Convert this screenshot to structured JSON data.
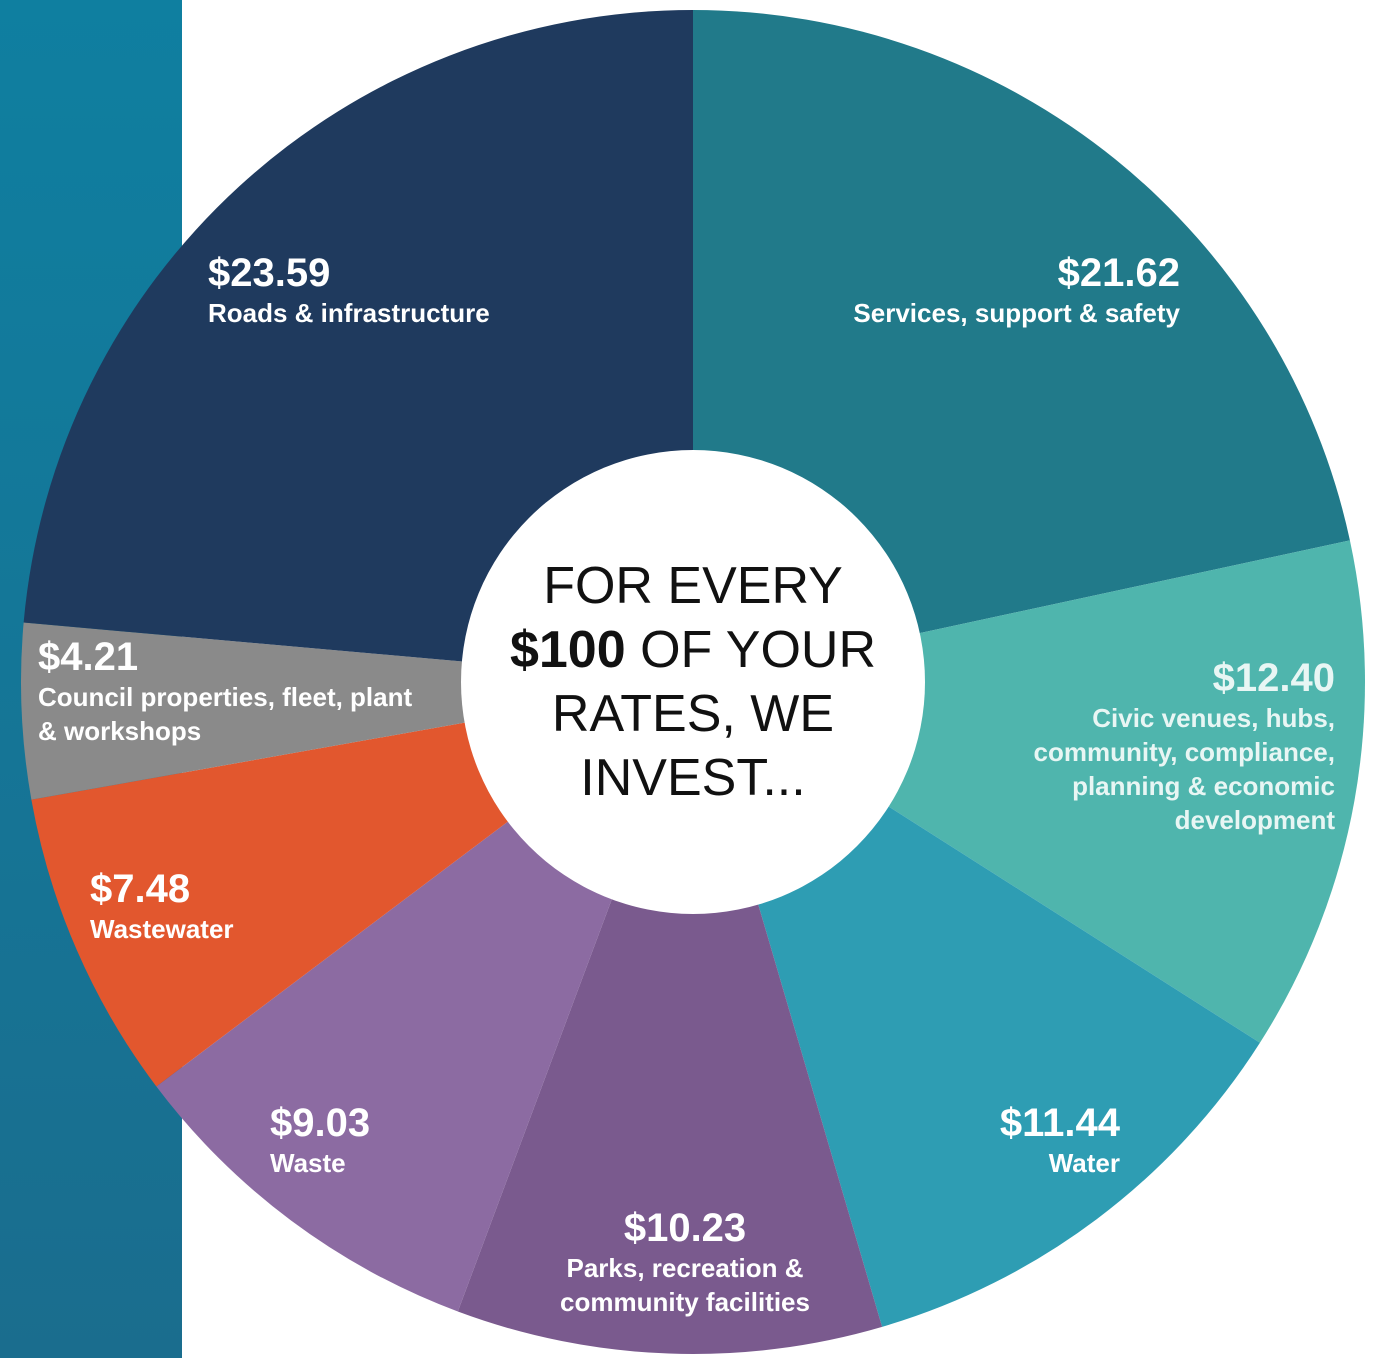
{
  "chart_data": {
    "type": "pie",
    "categories": [
      "Services, support & safety",
      "Civic venues, hubs, community, compliance, planning & economic development",
      "Water",
      "Parks, recreation & community facilities",
      "Waste",
      "Wastewater",
      "Council properties, fleet, plant & workshops",
      "Roads & infrastructure"
    ],
    "values": [
      21.62,
      12.4,
      11.44,
      10.23,
      9.03,
      7.48,
      4.21,
      23.59
    ],
    "value_labels": [
      "$21.62",
      "$12.40",
      "$11.44",
      "$10.23",
      "$9.03",
      "$7.48",
      "$4.21",
      "$23.59"
    ],
    "colors": [
      "#217a8a",
      "#4fb5ad",
      "#2e9db3",
      "#7a5a8e",
      "#8c6ba2",
      "#e2572e",
      "#8a8a8a",
      "#1f3a5e"
    ],
    "center_text": [
      "FOR EVERY",
      "$100",
      "OF YOUR RATES, WE INVEST..."
    ]
  }
}
